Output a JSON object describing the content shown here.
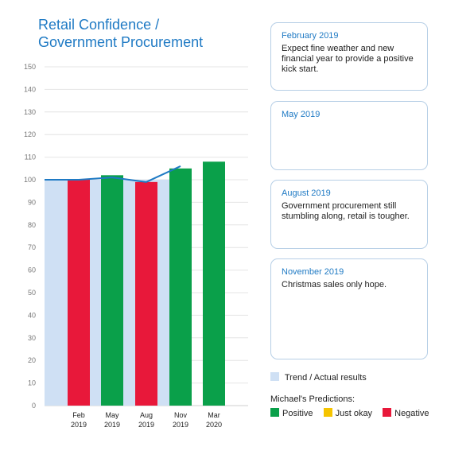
{
  "chart_data": {
    "type": "bar",
    "title_lines": [
      "Retail Confidence /",
      "Government Procurement"
    ],
    "y_ticks": [
      0,
      10,
      20,
      30,
      40,
      50,
      60,
      70,
      80,
      90,
      100,
      110,
      120,
      130,
      140,
      150
    ],
    "ylim": [
      0,
      150
    ],
    "grid": true,
    "categories": [
      {
        "line1": "Feb",
        "line2": "2019"
      },
      {
        "line1": "May",
        "line2": "2019"
      },
      {
        "line1": "Aug",
        "line2": "2019"
      },
      {
        "line1": "Nov",
        "line2": "2019"
      },
      {
        "line1": "Mar",
        "line2": "2020"
      }
    ],
    "predictions": [
      {
        "value": 100,
        "rating": "Negative"
      },
      {
        "value": 102,
        "rating": "Positive"
      },
      {
        "value": 99,
        "rating": "Negative"
      },
      {
        "value": 105,
        "rating": "Positive"
      },
      {
        "value": 108,
        "rating": "Positive"
      }
    ],
    "trend_actual": {
      "bar_value": 100,
      "line_points": [
        {
          "period": "start",
          "value": 100
        },
        {
          "period": "Feb 2019",
          "value": 100
        },
        {
          "period": "May 2019",
          "value": 101
        },
        {
          "period": "Aug 2019",
          "value": 99
        },
        {
          "period": "Nov 2019",
          "value": 106
        }
      ]
    }
  },
  "colors": {
    "positive": "#0aa04a",
    "just_okay": "#f5c400",
    "negative": "#e8183a",
    "trend_fill": "#cfe0f4",
    "trend_line": "#1f7ac4",
    "accent": "#1f7ac4"
  },
  "notes": [
    {
      "date": "February 2019",
      "text": "Expect fine weather and new financial year to provide a positive kick start."
    },
    {
      "date": "May 2019",
      "text": ""
    },
    {
      "date": "August 2019",
      "text": "Government procurement still stumbling along, retail is tougher."
    },
    {
      "date": "November 2019",
      "text": "Christmas sales only hope."
    }
  ],
  "legend": {
    "trend_label": "Trend / Actual results",
    "predictions_title": "Michael's Predictions:",
    "positive": "Positive",
    "just_okay": "Just okay",
    "negative": "Negative"
  }
}
